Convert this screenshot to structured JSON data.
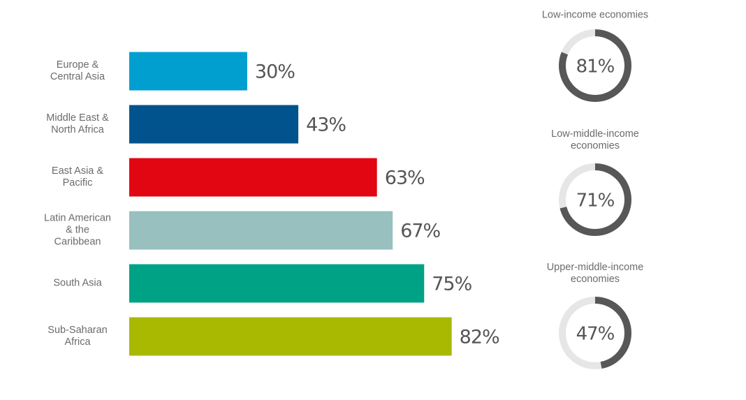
{
  "chart_data": [
    {
      "type": "bar",
      "categories": [
        "Europe &\nCentral Asia",
        "Middle East &\nNorth Africa",
        "East Asia &\nPacific",
        "Latin American\n& the\nCaribbean",
        "South Asia",
        "Sub-Saharan\nAfrica"
      ],
      "values": [
        30,
        43,
        63,
        67,
        75,
        82
      ],
      "value_labels": [
        "30%",
        "43%",
        "63%",
        "67%",
        "75%",
        "82%"
      ],
      "colors": [
        "#009fcf",
        "#00538c",
        "#e20613",
        "#97c0bf",
        "#00a286",
        "#a9b800"
      ]
    },
    {
      "type": "donut",
      "title": "Low-income economies",
      "value": 81,
      "value_label": "81%",
      "color": "#575757",
      "track_color": "#e6e6e6"
    },
    {
      "type": "donut",
      "title": "Low-middle-income\neconomies",
      "value": 71,
      "value_label": "71%",
      "color": "#575757",
      "track_color": "#e6e6e6"
    },
    {
      "type": "donut",
      "title": "Upper-middle-income\neconomies",
      "value": 47,
      "value_label": "47%",
      "color": "#575757",
      "track_color": "#e6e6e6"
    }
  ]
}
